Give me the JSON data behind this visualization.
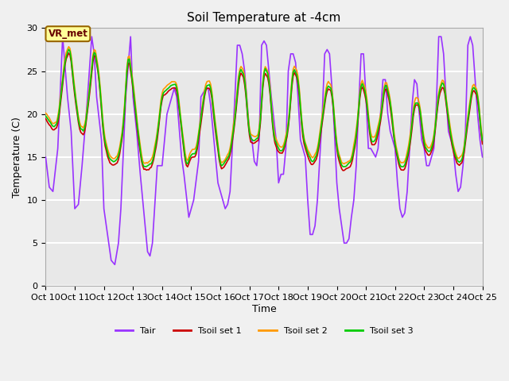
{
  "title": "Soil Temperature at -4cm",
  "xlabel": "Time",
  "ylabel": "Temperature (C)",
  "ylim": [
    0,
    30
  ],
  "yticks": [
    0,
    5,
    10,
    15,
    20,
    25,
    30
  ],
  "xlim": [
    0,
    360
  ],
  "x_tick_positions": [
    0,
    24,
    48,
    72,
    96,
    120,
    144,
    168,
    192,
    216,
    240,
    264,
    288,
    312,
    336,
    360
  ],
  "x_tick_labels": [
    "Oct 10",
    "Oct 11",
    "Oct 12",
    "Oct 13",
    "Oct 14",
    "Oct 15",
    "Oct 16",
    "Oct 17",
    "Oct 18",
    "Oct 19",
    "Oct 20",
    "Oct 21",
    "Oct 22",
    "Oct 23",
    "Oct 24",
    "Oct 25"
  ],
  "color_tair": "#9933ff",
  "color_tsoil1": "#cc0000",
  "color_tsoil2": "#ff9900",
  "color_tsoil3": "#00cc00",
  "annotation_text": "VR_met",
  "bg_color": "#e8e8e8",
  "grid_color": "#ffffff",
  "line_width": 1.2,
  "legend_labels": [
    "Tair",
    "Tsoil set 1",
    "Tsoil set 2",
    "Tsoil set 3"
  ],
  "tair_day_peaks": [
    15,
    29,
    22,
    29,
    22,
    23,
    28,
    28,
    22,
    26,
    27,
    27,
    16,
    21,
    16,
    24
  ],
  "tair_night_lows": [
    12,
    9,
    2.5,
    4,
    13,
    4,
    12,
    12,
    10,
    6,
    5,
    8,
    12,
    9,
    11,
    12
  ],
  "tair_peak_hour": [
    14,
    14,
    14,
    14,
    13,
    14,
    14,
    14,
    13,
    14,
    14,
    13,
    14,
    14,
    14,
    14
  ],
  "soil_day_peaks": [
    20,
    27,
    23,
    24,
    22,
    23,
    25,
    25,
    23,
    24,
    23,
    21,
    20,
    21,
    20,
    24
  ],
  "soil_night_lows": [
    18,
    17,
    13,
    13,
    15,
    13,
    15,
    16,
    15,
    15,
    15,
    13,
    15,
    15,
    14,
    15
  ],
  "soil2_extra": [
    1.5,
    1,
    1.5,
    1.5,
    1,
    1,
    1,
    1,
    1,
    1,
    1,
    1.5,
    1,
    1,
    1,
    1
  ]
}
